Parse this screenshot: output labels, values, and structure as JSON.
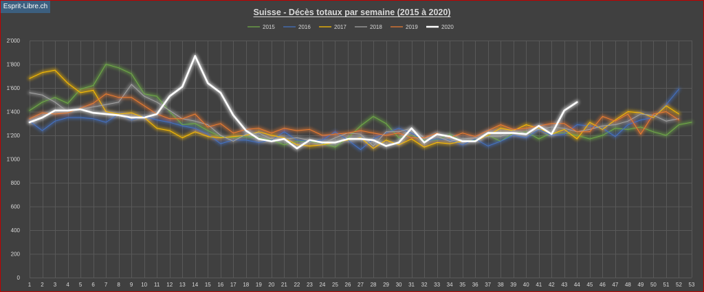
{
  "site_badge": "Esprit-Libre.ch",
  "chart_data": {
    "type": "line",
    "title": "Suisse - Décès totaux par semaine (2015  à 2020)",
    "xlabel": "",
    "ylabel": "",
    "x": [
      1,
      2,
      3,
      4,
      5,
      6,
      7,
      8,
      9,
      10,
      11,
      12,
      13,
      14,
      15,
      16,
      17,
      18,
      19,
      20,
      21,
      22,
      23,
      24,
      25,
      26,
      27,
      28,
      29,
      30,
      31,
      32,
      33,
      34,
      35,
      36,
      37,
      38,
      39,
      40,
      41,
      42,
      43,
      44,
      45,
      46,
      47,
      48,
      49,
      50,
      51,
      52,
      53
    ],
    "ylim": [
      0,
      2000
    ],
    "yticks": [
      0,
      200,
      400,
      600,
      800,
      1000,
      1200,
      1400,
      1600,
      1800,
      2000
    ],
    "ytick_labels": [
      "0",
      "200",
      "400",
      "600",
      "800",
      "1'000",
      "1'200",
      "1'400",
      "1'600",
      "1'800",
      "2'000"
    ],
    "grid": true,
    "legend_position": "top-center",
    "series": [
      {
        "name": "2015",
        "color": "#70ad47",
        "width": 1,
        "values": [
          1410,
          1480,
          1520,
          1470,
          1590,
          1620,
          1800,
          1770,
          1720,
          1550,
          1530,
          1400,
          1290,
          1300,
          1240,
          1190,
          1180,
          1190,
          1180,
          1160,
          1120,
          1150,
          1150,
          1130,
          1100,
          1180,
          1280,
          1360,
          1300,
          1180,
          1200,
          1160,
          1160,
          1210,
          1150,
          1160,
          1200,
          1150,
          1220,
          1230,
          1170,
          1220,
          1220,
          1200,
          1170,
          1200,
          1260,
          1250,
          1270,
          1230,
          1200,
          1290,
          1310
        ]
      },
      {
        "name": "2016",
        "color": "#4472c4",
        "width": 1,
        "values": [
          1320,
          1240,
          1320,
          1350,
          1350,
          1340,
          1310,
          1380,
          1330,
          1360,
          1330,
          1310,
          1280,
          1260,
          1210,
          1130,
          1160,
          1160,
          1140,
          1160,
          1230,
          1160,
          1150,
          1160,
          1230,
          1160,
          1080,
          1170,
          1220,
          1260,
          1220,
          1150,
          1170,
          1160,
          1120,
          1170,
          1110,
          1150,
          1200,
          1180,
          1250,
          1200,
          1210,
          1290,
          1280,
          1260,
          1190,
          1290,
          1330,
          1350,
          1460,
          1590,
          null
        ]
      },
      {
        "name": "2017",
        "color": "#ffc000",
        "width": 1,
        "values": [
          1680,
          1730,
          1750,
          1640,
          1560,
          1580,
          1400,
          1380,
          1390,
          1350,
          1260,
          1240,
          1180,
          1230,
          1190,
          1180,
          1190,
          1200,
          1230,
          1200,
          1180,
          1120,
          1110,
          1120,
          1140,
          1160,
          1180,
          1090,
          1160,
          1120,
          1170,
          1100,
          1140,
          1130,
          1150,
          1150,
          1200,
          1260,
          1240,
          1290,
          1260,
          1210,
          1250,
          1170,
          1310,
          1250,
          1330,
          1400,
          1390,
          1350,
          1450,
          1380,
          null
        ]
      },
      {
        "name": "2018",
        "color": "#a5a5a5",
        "width": 1,
        "values": [
          1560,
          1540,
          1480,
          1400,
          1420,
          1440,
          1460,
          1480,
          1630,
          1530,
          1480,
          1410,
          1340,
          1320,
          1290,
          1200,
          1150,
          1210,
          1220,
          1170,
          1170,
          1180,
          1160,
          1130,
          1180,
          1220,
          1210,
          1110,
          1230,
          1230,
          1260,
          1180,
          1190,
          1150,
          1170,
          1180,
          1190,
          1190,
          1240,
          1220,
          1250,
          1270,
          1260,
          1230,
          1250,
          1280,
          1290,
          1320,
          1380,
          1370,
          1320,
          1340,
          null
        ]
      },
      {
        "name": "2019",
        "color": "#ed7d31",
        "width": 1,
        "values": [
          1340,
          1390,
          1380,
          1390,
          1430,
          1470,
          1550,
          1520,
          1520,
          1450,
          1380,
          1340,
          1340,
          1380,
          1270,
          1300,
          1220,
          1250,
          1260,
          1220,
          1260,
          1240,
          1250,
          1200,
          1210,
          1220,
          1240,
          1220,
          1200,
          1220,
          1180,
          1180,
          1220,
          1180,
          1220,
          1190,
          1240,
          1290,
          1250,
          1260,
          1280,
          1300,
          1300,
          1230,
          1230,
          1360,
          1320,
          1380,
          1210,
          1380,
          1400,
          1330,
          null
        ]
      },
      {
        "name": "2020",
        "color": "#ffffff",
        "width": 2.6,
        "values": [
          1310,
          1350,
          1410,
          1410,
          1420,
          1390,
          1380,
          1370,
          1350,
          1350,
          1380,
          1530,
          1610,
          1870,
          1640,
          1560,
          1370,
          1240,
          1170,
          1150,
          1170,
          1090,
          1160,
          1140,
          1140,
          1170,
          1170,
          1160,
          1110,
          1140,
          1260,
          1140,
          1210,
          1190,
          1150,
          1150,
          1220,
          1220,
          1220,
          1210,
          1280,
          1210,
          1410,
          1480,
          null,
          null,
          null,
          null,
          null,
          null,
          null,
          null,
          null
        ]
      }
    ]
  }
}
